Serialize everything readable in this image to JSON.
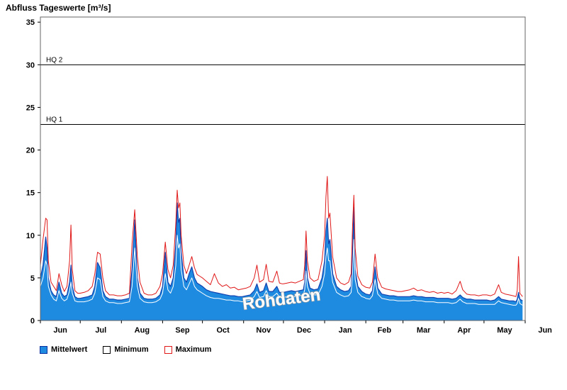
{
  "title": "Abfluss Tageswerte [m³/s]",
  "watermark": "Rohdaten",
  "legend": [
    {
      "label": "Mittelwert",
      "fill": "#1e8be0",
      "border": "#0a2fa0"
    },
    {
      "label": "Minimum",
      "fill": "#ffffff",
      "border": "#000000"
    },
    {
      "label": "Maximum",
      "fill": "#ffffff",
      "border": "#e01818"
    }
  ],
  "chart_data": {
    "type": "area",
    "title": "Abfluss Tageswerte [m³/s]",
    "xlabel": "",
    "ylabel": "",
    "ylim": [
      0,
      35
    ],
    "y_ticks": [
      0,
      5,
      10,
      15,
      20,
      25,
      30,
      35
    ],
    "x_range_days": [
      0,
      365
    ],
    "x_month_labels": [
      "Jun",
      "Jul",
      "Aug",
      "Sep",
      "Oct",
      "Nov",
      "Dec",
      "Jan",
      "Feb",
      "Mar",
      "Apr",
      "May",
      "Jun"
    ],
    "x_month_starts": [
      0,
      30,
      61,
      92,
      122,
      153,
      183,
      214,
      245,
      273,
      304,
      334,
      365
    ],
    "reference_lines": [
      {
        "label": "HQ 2",
        "value": 30
      },
      {
        "label": "HQ 1",
        "value": 23
      }
    ],
    "x": [
      0,
      2,
      4,
      5,
      6,
      8,
      10,
      12,
      14,
      16,
      18,
      20,
      22,
      23,
      24,
      26,
      28,
      30,
      33,
      36,
      39,
      41,
      43,
      45,
      47,
      49,
      52,
      55,
      58,
      61,
      64,
      67,
      69,
      71,
      73,
      75,
      78,
      81,
      84,
      87,
      90,
      92,
      94,
      96,
      98,
      100,
      102,
      103,
      104,
      105,
      106,
      108,
      110,
      112,
      114,
      116,
      118,
      120,
      122,
      125,
      128,
      131,
      134,
      137,
      140,
      143,
      146,
      149,
      152,
      155,
      158,
      161,
      163,
      165,
      168,
      170,
      172,
      175,
      178,
      180,
      182,
      183,
      186,
      189,
      192,
      195,
      198,
      199,
      200,
      201,
      203,
      206,
      209,
      212,
      214,
      215,
      216,
      217,
      218,
      220,
      223,
      226,
      229,
      232,
      234,
      235,
      236,
      237,
      239,
      242,
      244,
      245,
      248,
      250,
      252,
      254,
      257,
      260,
      263,
      266,
      269,
      272,
      275,
      278,
      281,
      284,
      287,
      290,
      293,
      296,
      299,
      302,
      304,
      307,
      310,
      313,
      316,
      318,
      321,
      324,
      327,
      330,
      333,
      336,
      339,
      342,
      345,
      347,
      350,
      353,
      356,
      358,
      359,
      360,
      361,
      363
    ],
    "series": [
      {
        "name": "Mittelwert",
        "style": "area",
        "color": "#1e8be0",
        "line_color": "#1040b0",
        "values": [
          5.0,
          6.5,
          9.8,
          8.5,
          5.0,
          3.5,
          3.0,
          2.8,
          4.5,
          3.2,
          2.8,
          3.0,
          4.5,
          6.5,
          4.0,
          2.8,
          2.6,
          2.6,
          2.7,
          2.8,
          3.0,
          4.0,
          6.8,
          6.2,
          3.5,
          2.8,
          2.5,
          2.5,
          2.4,
          2.4,
          2.5,
          2.6,
          6.0,
          11.8,
          5.0,
          3.2,
          2.6,
          2.5,
          2.5,
          2.6,
          3.0,
          4.0,
          8.0,
          4.5,
          4.0,
          5.0,
          9.0,
          13.8,
          11.5,
          12.0,
          8.0,
          5.0,
          4.5,
          5.5,
          6.3,
          5.0,
          4.4,
          4.2,
          4.0,
          3.6,
          3.4,
          3.3,
          3.2,
          3.1,
          3.0,
          2.9,
          2.9,
          2.8,
          2.8,
          2.9,
          3.0,
          3.5,
          4.3,
          3.3,
          3.5,
          4.4,
          3.4,
          3.4,
          4.0,
          3.3,
          3.3,
          3.3,
          3.4,
          3.5,
          3.4,
          3.5,
          3.6,
          4.5,
          8.2,
          5.0,
          3.8,
          3.6,
          3.7,
          5.0,
          7.0,
          10.5,
          12.0,
          9.0,
          9.5,
          5.5,
          4.0,
          3.6,
          3.4,
          3.5,
          4.0,
          8.0,
          13.3,
          6.0,
          4.0,
          3.4,
          3.2,
          3.1,
          3.0,
          3.5,
          6.3,
          3.8,
          3.1,
          3.0,
          2.9,
          2.9,
          2.8,
          2.8,
          2.8,
          2.8,
          2.9,
          2.8,
          2.8,
          2.7,
          2.7,
          2.7,
          2.6,
          2.6,
          2.6,
          2.6,
          2.5,
          2.6,
          3.0,
          2.7,
          2.5,
          2.5,
          2.4,
          2.4,
          2.4,
          2.4,
          2.3,
          2.4,
          2.8,
          2.5,
          2.4,
          2.3,
          2.3,
          2.2,
          2.5,
          3.3,
          2.5,
          2.3
        ]
      },
      {
        "name": "Minimum",
        "style": "line",
        "color": "#ffffff",
        "values": [
          4.0,
          5.0,
          7.0,
          6.5,
          4.0,
          3.0,
          2.5,
          2.3,
          3.5,
          2.6,
          2.3,
          2.5,
          3.5,
          4.5,
          3.2,
          2.3,
          2.2,
          2.2,
          2.2,
          2.3,
          2.5,
          3.2,
          5.0,
          4.8,
          2.8,
          2.3,
          2.1,
          2.1,
          2.0,
          2.0,
          2.1,
          2.2,
          4.0,
          8.5,
          4.0,
          2.6,
          2.2,
          2.1,
          2.1,
          2.2,
          2.5,
          3.2,
          5.5,
          3.6,
          3.2,
          4.0,
          6.5,
          10.0,
          8.5,
          9.0,
          6.0,
          4.0,
          3.6,
          4.3,
          5.0,
          4.0,
          3.6,
          3.4,
          3.2,
          2.9,
          2.7,
          2.6,
          2.6,
          2.5,
          2.4,
          2.4,
          2.3,
          2.3,
          2.2,
          2.3,
          2.4,
          2.8,
          3.4,
          2.7,
          2.8,
          3.5,
          2.8,
          2.8,
          3.2,
          2.7,
          2.7,
          2.7,
          2.8,
          2.8,
          2.8,
          2.9,
          3.0,
          3.6,
          5.8,
          4.0,
          3.1,
          3.0,
          3.0,
          4.0,
          5.5,
          7.5,
          8.5,
          7.0,
          7.0,
          4.5,
          3.3,
          3.0,
          2.8,
          2.9,
          3.3,
          5.5,
          9.5,
          4.8,
          3.3,
          2.8,
          2.7,
          2.6,
          2.5,
          2.9,
          4.8,
          3.1,
          2.6,
          2.5,
          2.4,
          2.4,
          2.3,
          2.3,
          2.3,
          2.3,
          2.4,
          2.3,
          2.3,
          2.2,
          2.2,
          2.2,
          2.1,
          2.1,
          2.1,
          2.1,
          2.0,
          2.1,
          2.5,
          2.2,
          2.0,
          2.0,
          2.0,
          1.9,
          1.9,
          1.9,
          1.9,
          1.9,
          2.3,
          2.1,
          2.0,
          1.9,
          1.8,
          1.8,
          2.0,
          2.6,
          2.0,
          1.8
        ]
      },
      {
        "name": "Maximum",
        "style": "line",
        "color": "#e01818",
        "values": [
          6.5,
          9.5,
          12.0,
          11.8,
          7.0,
          4.5,
          4.0,
          3.5,
          5.5,
          4.2,
          3.4,
          4.0,
          7.0,
          11.2,
          6.0,
          3.5,
          3.2,
          3.2,
          3.3,
          3.5,
          4.0,
          5.5,
          8.0,
          7.8,
          5.0,
          3.5,
          3.0,
          3.0,
          2.9,
          2.9,
          3.0,
          3.2,
          9.0,
          13.0,
          7.5,
          4.5,
          3.2,
          3.0,
          3.0,
          3.2,
          4.0,
          5.5,
          9.2,
          6.0,
          5.0,
          6.5,
          11.5,
          15.3,
          13.2,
          13.8,
          10.0,
          6.5,
          5.5,
          6.5,
          7.5,
          6.2,
          5.4,
          5.2,
          5.0,
          4.6,
          4.2,
          5.5,
          4.4,
          4.0,
          4.2,
          3.8,
          3.9,
          3.6,
          3.7,
          3.8,
          4.0,
          5.0,
          6.5,
          4.5,
          4.8,
          6.6,
          4.6,
          4.5,
          5.8,
          4.4,
          4.3,
          4.3,
          4.4,
          4.5,
          4.4,
          4.6,
          4.8,
          6.5,
          10.5,
          7.0,
          5.0,
          4.6,
          4.8,
          7.0,
          10.0,
          14.5,
          16.9,
          12.0,
          12.6,
          7.5,
          5.0,
          4.4,
          4.2,
          4.5,
          5.5,
          11.0,
          14.7,
          8.5,
          5.2,
          4.2,
          4.0,
          3.9,
          3.8,
          4.5,
          7.8,
          5.0,
          3.9,
          3.7,
          3.6,
          3.5,
          3.4,
          3.4,
          3.5,
          3.6,
          3.8,
          3.5,
          3.6,
          3.4,
          3.3,
          3.4,
          3.2,
          3.3,
          3.2,
          3.3,
          3.1,
          3.5,
          4.6,
          3.6,
          3.1,
          3.0,
          3.0,
          2.9,
          3.0,
          3.0,
          2.9,
          3.1,
          4.2,
          3.3,
          3.1,
          3.0,
          2.9,
          2.8,
          3.5,
          7.5,
          3.2,
          2.8
        ]
      }
    ]
  }
}
